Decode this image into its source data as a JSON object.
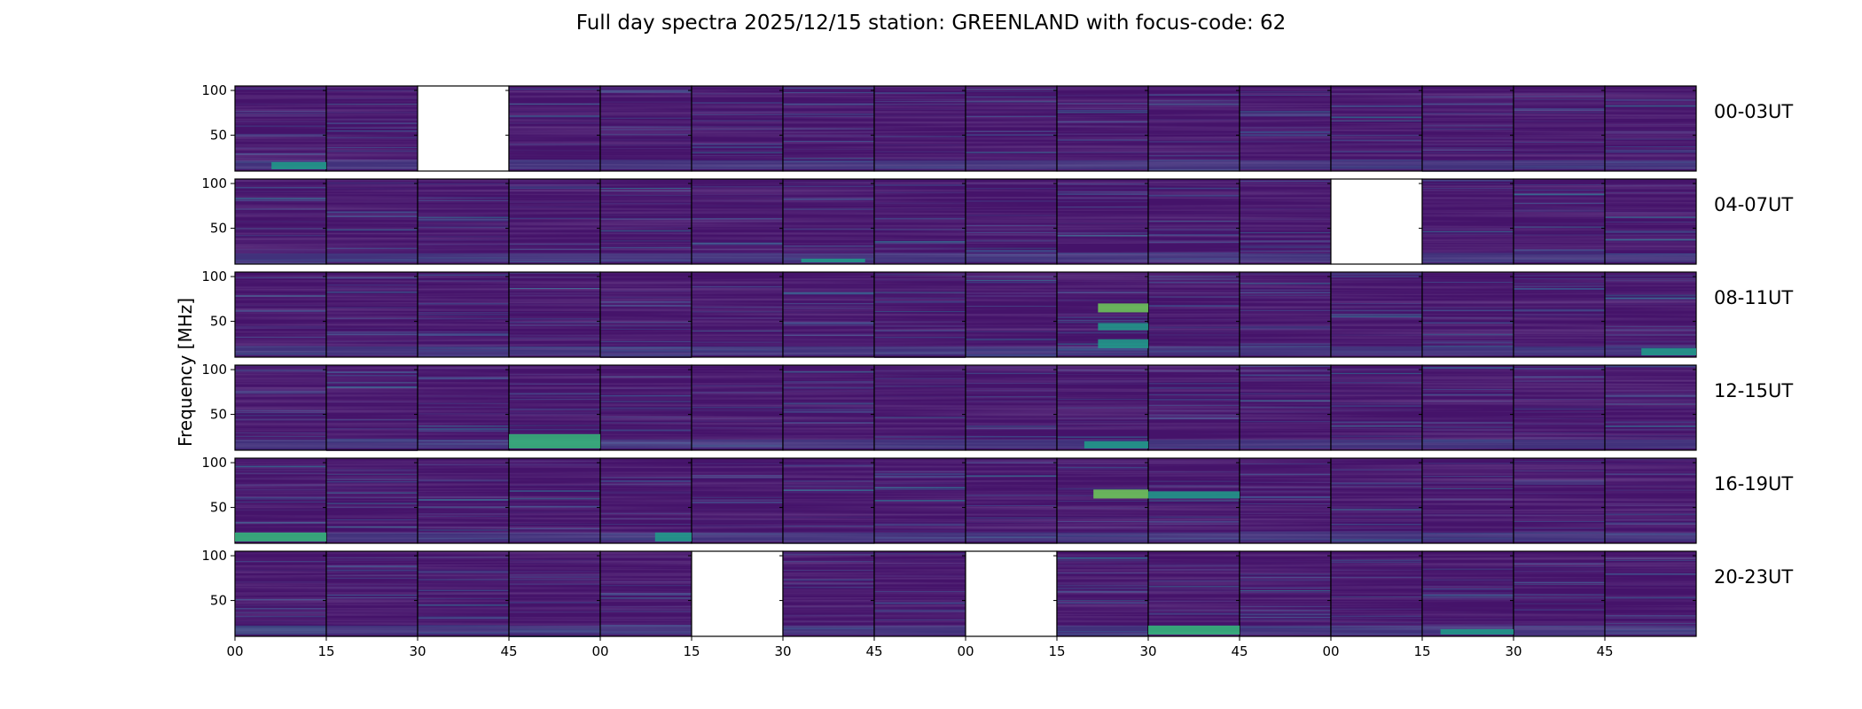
{
  "chart_data": {
    "type": "heatmap",
    "title": "Full day spectra 2025/12/15 station: GREENLAND with focus-code: 62",
    "ylabel": "Frequency [MHz]",
    "xlabel": "",
    "ylim": [
      10,
      105
    ],
    "yticks": [
      50,
      100
    ],
    "xtick_labels": [
      "00",
      "15",
      "30",
      "45",
      "00",
      "15",
      "30",
      "45",
      "00",
      "15",
      "30",
      "45",
      "00",
      "15",
      "30",
      "45"
    ],
    "panels_per_row": 16,
    "minutes_per_panel": 15,
    "colormap": "viridis",
    "rows": [
      {
        "label": "00-03UT",
        "missing": [
          2
        ],
        "hotspots": [
          {
            "panel": 0,
            "fmin": 12,
            "fmax": 20,
            "level": 0.55,
            "tstart": 0.4,
            "tend": 1.0
          }
        ]
      },
      {
        "label": "04-07UT",
        "missing": [
          12
        ],
        "hotspots": [
          {
            "panel": 6,
            "fmin": 12,
            "fmax": 16,
            "level": 0.5,
            "tstart": 0.2,
            "tend": 0.9
          }
        ]
      },
      {
        "label": "08-11UT",
        "missing": [],
        "hotspots": [
          {
            "panel": 9,
            "fmin": 60,
            "fmax": 70,
            "level": 0.75,
            "tstart": 0.45,
            "tend": 1.0
          },
          {
            "panel": 9,
            "fmin": 40,
            "fmax": 48,
            "level": 0.55,
            "tstart": 0.45,
            "tend": 1.0
          },
          {
            "panel": 9,
            "fmin": 20,
            "fmax": 30,
            "level": 0.5,
            "tstart": 0.45,
            "tend": 1.0
          },
          {
            "panel": 15,
            "fmin": 12,
            "fmax": 20,
            "level": 0.55,
            "tstart": 0.4,
            "tend": 1.0
          }
        ]
      },
      {
        "label": "12-15UT",
        "missing": [],
        "hotspots": [
          {
            "panel": 3,
            "fmin": 12,
            "fmax": 28,
            "level": 0.65,
            "tstart": 0.0,
            "tend": 1.0
          },
          {
            "panel": 9,
            "fmin": 12,
            "fmax": 20,
            "level": 0.5,
            "tstart": 0.3,
            "tend": 1.0
          }
        ]
      },
      {
        "label": "16-19UT",
        "missing": [],
        "hotspots": [
          {
            "panel": 0,
            "fmin": 12,
            "fmax": 22,
            "level": 0.7,
            "tstart": 0.0,
            "tend": 1.0
          },
          {
            "panel": 9,
            "fmin": 60,
            "fmax": 70,
            "level": 0.8,
            "tstart": 0.4,
            "tend": 1.0
          },
          {
            "panel": 10,
            "fmin": 60,
            "fmax": 68,
            "level": 0.6,
            "tstart": 0.0,
            "tend": 1.0
          },
          {
            "panel": 4,
            "fmin": 12,
            "fmax": 22,
            "level": 0.5,
            "tstart": 0.6,
            "tend": 1.0
          }
        ]
      },
      {
        "label": "20-23UT",
        "missing": [
          5,
          8
        ],
        "hotspots": [
          {
            "panel": 10,
            "fmin": 12,
            "fmax": 22,
            "level": 0.7,
            "tstart": 0.0,
            "tend": 1.0
          },
          {
            "panel": 13,
            "fmin": 12,
            "fmax": 18,
            "level": 0.5,
            "tstart": 0.2,
            "tend": 1.0
          }
        ]
      }
    ]
  }
}
